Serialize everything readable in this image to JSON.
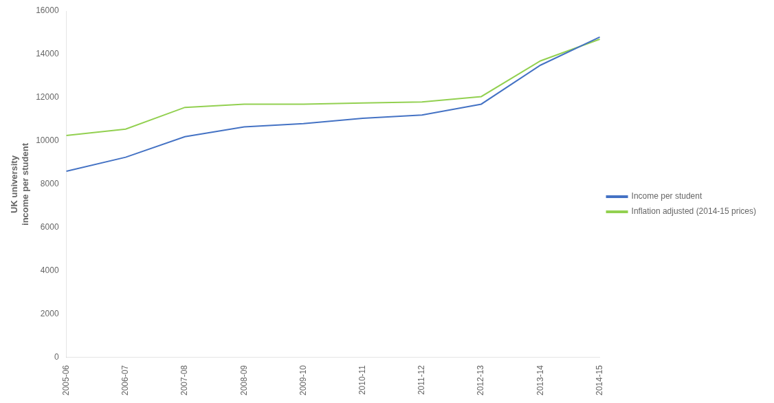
{
  "chart_data": {
    "type": "line",
    "ylabel": "UK university\nincome per student",
    "categories": [
      "2005-06",
      "2006-07",
      "2007-08",
      "2008-09",
      "2009-10",
      "2010-11",
      "2011-12",
      "2012-13",
      "2013-14",
      "2014-15"
    ],
    "series": [
      {
        "name": "Income per student",
        "color": "#4472C4",
        "values": [
          8600,
          9250,
          10200,
          10650,
          10800,
          11050,
          11200,
          11700,
          13500,
          14800
        ]
      },
      {
        "name": "Inflation adjusted (2014-15 prices)",
        "color": "#92D050",
        "values": [
          10250,
          10550,
          11550,
          11700,
          11700,
          11750,
          11800,
          12050,
          13700,
          14700
        ]
      }
    ],
    "ylim": [
      0,
      16000
    ],
    "yticks": [
      0,
      2000,
      4000,
      6000,
      8000,
      10000,
      12000,
      14000,
      16000
    ],
    "grid": false,
    "legend": "right"
  }
}
